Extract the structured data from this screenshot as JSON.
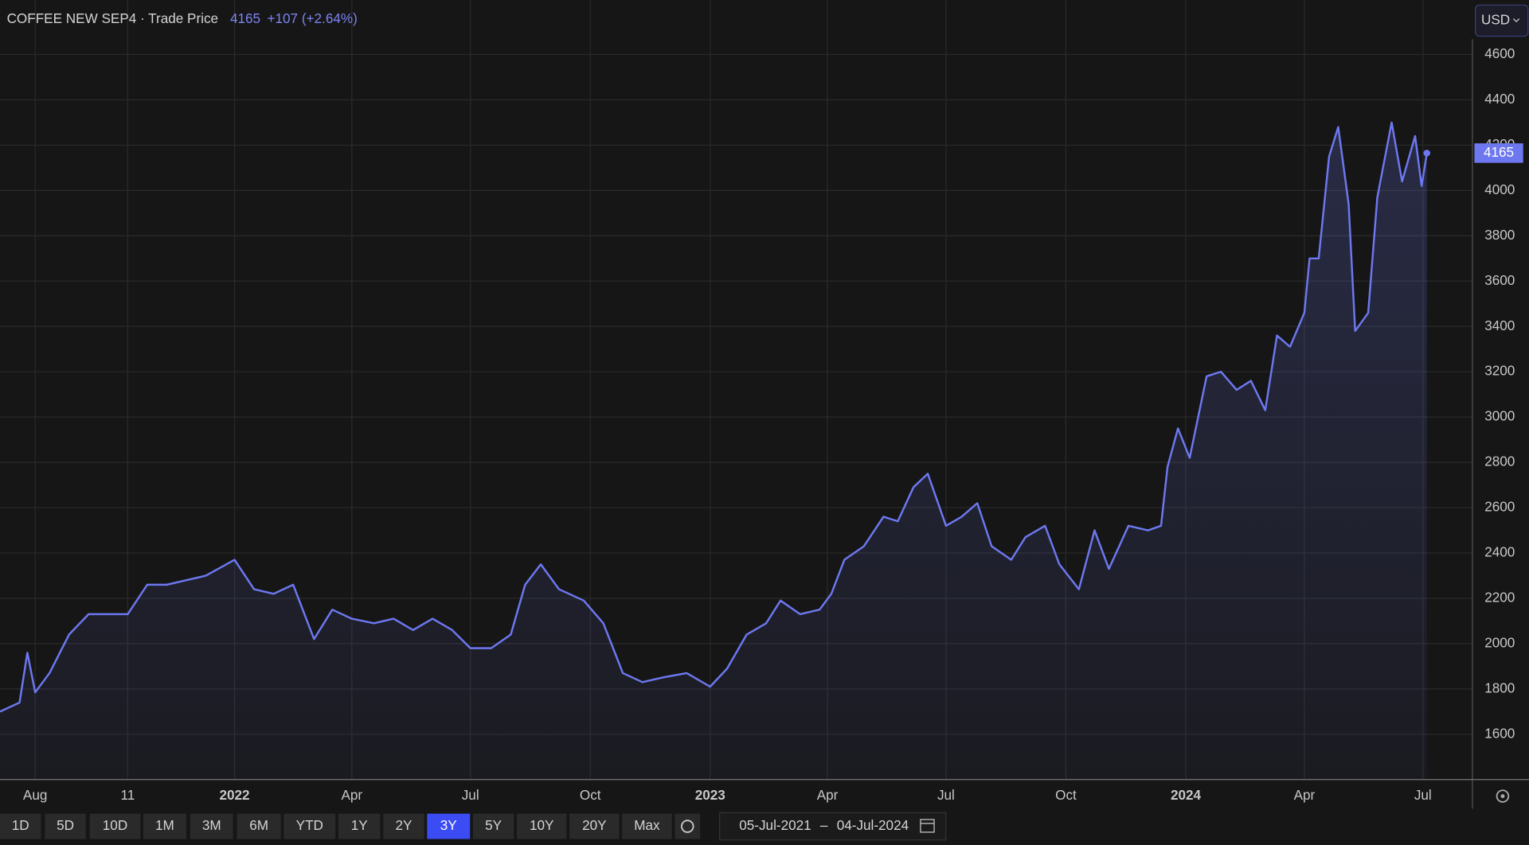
{
  "chart_data": {
    "type": "line",
    "title": "COFFEE NEW SEP4 · Trade Price",
    "last_price": 4165,
    "change": "+107 (+2.64%)",
    "currency": "USD",
    "x": [
      "2021-07-05",
      "2021-07-20",
      "2021-07-26",
      "2021-08-01",
      "2021-08-12",
      "2021-08-27",
      "2021-09-11",
      "2021-09-26",
      "2021-10-11",
      "2021-10-26",
      "2021-11-10",
      "2021-11-25",
      "2021-12-10",
      "2022-01-01",
      "2022-01-16",
      "2022-01-31",
      "2022-02-15",
      "2022-03-03",
      "2022-03-17",
      "2022-04-01",
      "2022-04-18",
      "2022-05-03",
      "2022-05-18",
      "2022-06-02",
      "2022-06-17",
      "2022-07-01",
      "2022-07-17",
      "2022-08-01",
      "2022-08-12",
      "2022-08-24",
      "2022-09-07",
      "2022-09-26",
      "2022-10-11",
      "2022-10-26",
      "2022-11-10",
      "2022-11-25",
      "2022-12-14",
      "2023-01-01",
      "2023-01-14",
      "2023-01-29",
      "2023-02-13",
      "2023-02-24",
      "2023-03-11",
      "2023-03-26",
      "2023-04-04",
      "2023-04-14",
      "2023-04-29",
      "2023-05-14",
      "2023-05-25",
      "2023-06-06",
      "2023-06-17",
      "2023-07-01",
      "2023-07-13",
      "2023-07-25",
      "2023-08-05",
      "2023-08-20",
      "2023-08-31",
      "2023-09-15",
      "2023-09-26",
      "2023-10-11",
      "2023-10-23",
      "2023-11-03",
      "2023-11-18",
      "2023-12-03",
      "2023-12-13",
      "2023-12-18",
      "2023-12-26",
      "2024-01-04",
      "2024-01-17",
      "2024-01-28",
      "2024-02-09",
      "2024-02-20",
      "2024-03-02",
      "2024-03-11",
      "2024-03-21",
      "2024-04-01",
      "2024-04-05",
      "2024-04-12",
      "2024-04-20",
      "2024-04-27",
      "2024-05-05",
      "2024-05-10",
      "2024-05-20",
      "2024-05-27",
      "2024-06-02",
      "2024-06-07",
      "2024-06-15",
      "2024-06-25",
      "2024-06-30",
      "2024-07-04"
    ],
    "series": [
      {
        "name": "Trade Price",
        "color": "#6d78f0",
        "values": [
          1700,
          1740,
          1960,
          1785,
          1870,
          2040,
          2130,
          2130,
          2130,
          2260,
          2260,
          2280,
          2300,
          2370,
          2240,
          2220,
          2260,
          2020,
          2150,
          2110,
          2090,
          2110,
          2060,
          2110,
          2060,
          1980,
          1980,
          2040,
          2260,
          2350,
          2240,
          2190,
          2090,
          1870,
          1830,
          1850,
          1870,
          1810,
          1890,
          2040,
          2090,
          2190,
          2130,
          2150,
          2220,
          2370,
          2430,
          2560,
          2540,
          2690,
          2750,
          2520,
          2560,
          2620,
          2430,
          2370,
          2470,
          2520,
          2350,
          2240,
          2500,
          2330,
          2520,
          2500,
          2520,
          2780,
          2950,
          2820,
          3180,
          3200,
          3120,
          3160,
          3030,
          3360,
          3310,
          3460,
          3700,
          3700,
          4150,
          4280,
          3940,
          3380,
          3460,
          3970,
          4150,
          4300,
          4040,
          4240,
          4020,
          4165
        ]
      }
    ],
    "xlim": [
      "2021-07-05",
      "2024-08-08"
    ],
    "xticks": [
      {
        "value": "2021-08-01",
        "label": "Aug"
      },
      {
        "value": "2021-10-11",
        "label": "11"
      },
      {
        "value": "2022-01-01",
        "label": "2022"
      },
      {
        "value": "2022-04-01",
        "label": "Apr"
      },
      {
        "value": "2022-07-01",
        "label": "Jul"
      },
      {
        "value": "2022-10-01",
        "label": "Oct"
      },
      {
        "value": "2023-01-01",
        "label": "2023"
      },
      {
        "value": "2023-04-01",
        "label": "Apr"
      },
      {
        "value": "2023-07-01",
        "label": "Jul"
      },
      {
        "value": "2023-10-01",
        "label": "Oct"
      },
      {
        "value": "2024-01-01",
        "label": "2024"
      },
      {
        "value": "2024-04-01",
        "label": "Apr"
      },
      {
        "value": "2024-07-01",
        "label": "Jul"
      }
    ],
    "ylim": [
      1400,
      4840
    ],
    "yticks": [
      1600,
      1800,
      2000,
      2200,
      2400,
      2600,
      2800,
      3000,
      3200,
      3400,
      3600,
      3800,
      4000,
      4200,
      4400,
      4600
    ],
    "grid": true,
    "range_buttons": [
      "1D",
      "5D",
      "10D",
      "1M",
      "3M",
      "6M",
      "YTD",
      "1Y",
      "2Y",
      "3Y",
      "5Y",
      "10Y",
      "20Y",
      "Max"
    ],
    "selected_range": 9,
    "date_from": "05-Jul-2021",
    "date_to": "04-Jul-2024"
  }
}
